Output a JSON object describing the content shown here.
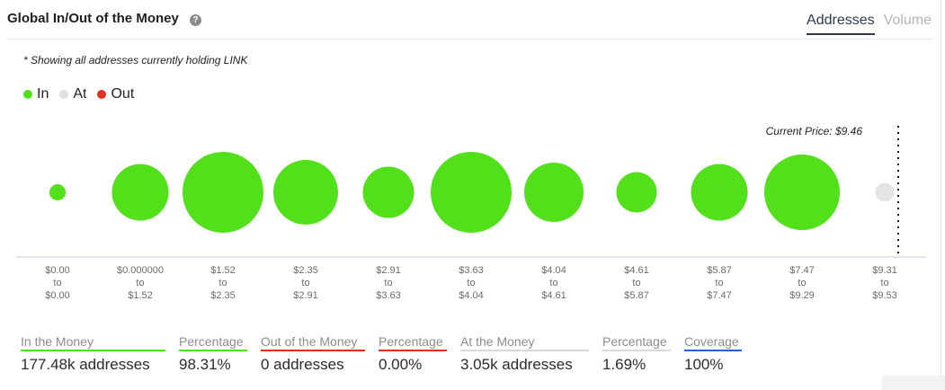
{
  "header": {
    "title": "Global In/Out of the Money",
    "tabs": [
      {
        "label": "Addresses",
        "active": true
      },
      {
        "label": "Volume",
        "active": false
      }
    ]
  },
  "note": "* Showing all addresses currently holding LINK",
  "legend": [
    {
      "label": "In",
      "color": "#52e01a"
    },
    {
      "label": "At",
      "color": "#e0e0e0"
    },
    {
      "label": "Out",
      "color": "#e03020"
    }
  ],
  "chart_data": {
    "type": "bubble",
    "current_price_label": "Current Price: $9.46",
    "bubbles": [
      {
        "range": [
          "$0.00",
          "to",
          "$0.00"
        ],
        "size": 0.12,
        "status": "in"
      },
      {
        "range": [
          "$0.000000",
          "to",
          "$1.52"
        ],
        "size": 0.42,
        "status": "in"
      },
      {
        "range": [
          "$1.52",
          "to",
          "$2.35"
        ],
        "size": 0.6,
        "status": "in"
      },
      {
        "range": [
          "$2.35",
          "to",
          "$2.91"
        ],
        "size": 0.48,
        "status": "in"
      },
      {
        "range": [
          "$2.91",
          "to",
          "$3.63"
        ],
        "size": 0.38,
        "status": "in"
      },
      {
        "range": [
          "$3.63",
          "to",
          "$4.04"
        ],
        "size": 0.6,
        "status": "in"
      },
      {
        "range": [
          "$4.04",
          "to",
          "$4.61"
        ],
        "size": 0.44,
        "status": "in"
      },
      {
        "range": [
          "$4.61",
          "to",
          "$5.87"
        ],
        "size": 0.3,
        "status": "in"
      },
      {
        "range": [
          "$5.87",
          "to",
          "$7.47"
        ],
        "size": 0.42,
        "status": "in"
      },
      {
        "range": [
          "$7.47",
          "to",
          "$9.29"
        ],
        "size": 0.56,
        "status": "in"
      },
      {
        "range": [
          "$9.31",
          "to",
          "$9.53"
        ],
        "size": 0.14,
        "status": "at"
      }
    ],
    "colors": {
      "in": "#52e01a",
      "at": "#e4e4e4",
      "out": "#e03020"
    }
  },
  "stats": [
    {
      "label": "In the Money",
      "value": "177.48k addresses",
      "color": "#52e01a"
    },
    {
      "label": "Percentage",
      "value": "98.31%",
      "color": "#52e01a"
    },
    {
      "label": "Out of the Money",
      "value": "0 addresses",
      "color": "#e03020"
    },
    {
      "label": "Percentage",
      "value": "0.00%",
      "color": "#e03020"
    },
    {
      "label": "At the Money",
      "value": "3.05k addresses",
      "color": "#d9d9d9"
    },
    {
      "label": "Percentage",
      "value": "1.69%",
      "color": "#d9d9d9"
    },
    {
      "label": "Coverage",
      "value": "100%",
      "color": "#2f5bd4"
    }
  ]
}
